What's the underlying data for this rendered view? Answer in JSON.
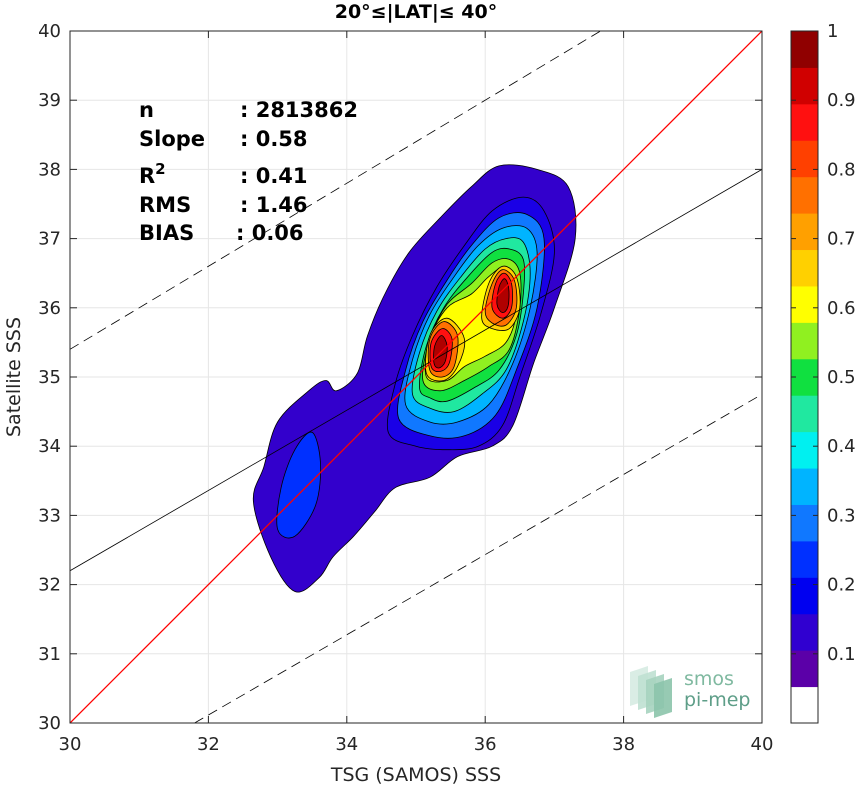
{
  "chart_data": {
    "type": "heatmap",
    "subtype": "filled-contour density scatter",
    "title": "20°≤|LAT|≤ 40°",
    "xlabel": "TSG (SAMOS) SSS",
    "ylabel": "Satellite SSS",
    "xlim": [
      30,
      40
    ],
    "ylim": [
      30,
      40
    ],
    "xticks": [
      30,
      32,
      34,
      36,
      38,
      40
    ],
    "yticks": [
      30,
      31,
      32,
      33,
      34,
      35,
      36,
      37,
      38,
      39,
      40
    ],
    "grid": true,
    "stats": [
      {
        "key": "n",
        "sep": ": ",
        "value": "2813862"
      },
      {
        "key": "Slope",
        "sep": ": ",
        "value": "0.58"
      },
      {
        "key": "R",
        "sup": "2",
        "sep": ": ",
        "value": "0.41"
      },
      {
        "key": "RMS",
        "sep": ": ",
        "value": "1.46"
      },
      {
        "key": "BIAS",
        "sep": ": ",
        "value": "0.06"
      }
    ],
    "lines": {
      "identity": {
        "x": [
          30,
          40
        ],
        "y": [
          30,
          40
        ],
        "color": "#ff0000"
      },
      "regression": {
        "x": [
          30,
          40
        ],
        "y": [
          32.2,
          38.0
        ],
        "color": "#000000"
      },
      "upper_bound": {
        "x": [
          30,
          40
        ],
        "y": [
          35.4,
          41.4
        ],
        "color": "#000000",
        "dash": true
      },
      "lower_bound": {
        "x": [
          31.8,
          40
        ],
        "y": [
          30.0,
          34.75
        ],
        "color": "#000000",
        "dash": true
      }
    },
    "colorbar": {
      "min": 0,
      "max": 1,
      "ticks": [
        "0.1",
        "0.2",
        "0.3",
        "0.4",
        "0.5",
        "0.6",
        "0.7",
        "0.8",
        "0.9",
        "1"
      ],
      "colors": [
        "#ffffff",
        "#5b00a8",
        "#3000d0",
        "#0000f0",
        "#0030ff",
        "#1078ff",
        "#00b4ff",
        "#00f0f0",
        "#20e8a0",
        "#10e040",
        "#90f020",
        "#ffff00",
        "#ffd000",
        "#ffa000",
        "#ff7000",
        "#ff4000",
        "#ff1010",
        "#d00000",
        "#900000"
      ]
    },
    "contours": [
      {
        "level": 0.05,
        "color": "#3300cc",
        "points": [
          [
            32.65,
            33.2
          ],
          [
            32.8,
            33.7
          ],
          [
            33.0,
            34.35
          ],
          [
            33.45,
            34.8
          ],
          [
            33.7,
            34.95
          ],
          [
            33.85,
            34.8
          ],
          [
            34.15,
            35.05
          ],
          [
            34.3,
            35.6
          ],
          [
            34.55,
            36.2
          ],
          [
            34.9,
            36.8
          ],
          [
            35.35,
            37.3
          ],
          [
            35.8,
            37.75
          ],
          [
            36.2,
            38.05
          ],
          [
            36.75,
            38.0
          ],
          [
            37.2,
            37.75
          ],
          [
            37.3,
            37.0
          ],
          [
            37.0,
            36.0
          ],
          [
            36.7,
            35.2
          ],
          [
            36.4,
            34.3
          ],
          [
            36.1,
            34.0
          ],
          [
            35.6,
            33.85
          ],
          [
            35.2,
            33.55
          ],
          [
            34.7,
            33.4
          ],
          [
            34.4,
            33.05
          ],
          [
            34.1,
            32.7
          ],
          [
            33.8,
            32.4
          ],
          [
            33.6,
            32.1
          ],
          [
            33.25,
            31.9
          ],
          [
            32.9,
            32.4
          ]
        ]
      },
      {
        "level": 0.25,
        "color": "#0030ff",
        "points": [
          [
            33.0,
            32.8
          ],
          [
            33.05,
            33.4
          ],
          [
            33.25,
            33.95
          ],
          [
            33.5,
            34.2
          ],
          [
            33.62,
            33.75
          ],
          [
            33.55,
            33.15
          ],
          [
            33.25,
            32.7
          ]
        ]
      },
      {
        "level": 0.15,
        "color": "#1a00e6",
        "points": [
          [
            34.6,
            34.2
          ],
          [
            34.7,
            34.9
          ],
          [
            34.95,
            35.6
          ],
          [
            35.3,
            36.3
          ],
          [
            35.7,
            36.9
          ],
          [
            36.1,
            37.4
          ],
          [
            36.55,
            37.6
          ],
          [
            36.85,
            37.4
          ],
          [
            37.0,
            36.8
          ],
          [
            36.8,
            35.9
          ],
          [
            36.5,
            35.0
          ],
          [
            36.25,
            34.3
          ],
          [
            35.9,
            34.0
          ],
          [
            35.45,
            33.95
          ],
          [
            35.0,
            34.0
          ]
        ]
      },
      {
        "level": 0.3,
        "color": "#1078ff",
        "points": [
          [
            34.75,
            34.4
          ],
          [
            34.85,
            35.1
          ],
          [
            35.1,
            35.8
          ],
          [
            35.45,
            36.4
          ],
          [
            35.8,
            36.9
          ],
          [
            36.2,
            37.3
          ],
          [
            36.6,
            37.35
          ],
          [
            36.85,
            37.0
          ],
          [
            36.75,
            36.0
          ],
          [
            36.45,
            35.1
          ],
          [
            36.15,
            34.45
          ],
          [
            35.7,
            34.15
          ],
          [
            35.2,
            34.15
          ]
        ]
      },
      {
        "level": 0.38,
        "color": "#00b4ff",
        "points": [
          [
            34.85,
            34.6
          ],
          [
            34.95,
            35.25
          ],
          [
            35.2,
            35.9
          ],
          [
            35.55,
            36.45
          ],
          [
            35.9,
            36.9
          ],
          [
            36.25,
            37.15
          ],
          [
            36.6,
            37.15
          ],
          [
            36.75,
            36.8
          ],
          [
            36.65,
            36.0
          ],
          [
            36.4,
            35.2
          ],
          [
            36.05,
            34.6
          ],
          [
            35.6,
            34.35
          ],
          [
            35.2,
            34.35
          ]
        ]
      },
      {
        "level": 0.45,
        "color": "#20e8a0",
        "points": [
          [
            34.95,
            34.75
          ],
          [
            35.05,
            35.35
          ],
          [
            35.3,
            35.95
          ],
          [
            35.65,
            36.45
          ],
          [
            36.0,
            36.85
          ],
          [
            36.3,
            37.0
          ],
          [
            36.55,
            36.95
          ],
          [
            36.65,
            36.5
          ],
          [
            36.55,
            35.8
          ],
          [
            36.3,
            35.1
          ],
          [
            35.95,
            34.75
          ],
          [
            35.55,
            34.5
          ],
          [
            35.2,
            34.55
          ]
        ]
      },
      {
        "level": 0.5,
        "color": "#10e040",
        "points": [
          [
            35.05,
            34.85
          ],
          [
            35.15,
            35.45
          ],
          [
            35.4,
            36.0
          ],
          [
            35.75,
            36.45
          ],
          [
            36.1,
            36.8
          ],
          [
            36.35,
            36.85
          ],
          [
            36.55,
            36.7
          ],
          [
            36.55,
            36.2
          ],
          [
            36.45,
            35.6
          ],
          [
            36.2,
            35.1
          ],
          [
            35.85,
            34.85
          ],
          [
            35.45,
            34.65
          ],
          [
            35.2,
            34.7
          ]
        ]
      },
      {
        "level": 0.58,
        "color": "#90f020",
        "points": [
          [
            35.1,
            34.95
          ],
          [
            35.2,
            35.55
          ],
          [
            35.45,
            36.05
          ],
          [
            35.8,
            36.35
          ],
          [
            36.1,
            36.65
          ],
          [
            36.35,
            36.7
          ],
          [
            36.5,
            36.5
          ],
          [
            36.5,
            36.0
          ],
          [
            36.35,
            35.4
          ],
          [
            36.05,
            35.15
          ],
          [
            35.7,
            34.95
          ],
          [
            35.35,
            34.8
          ]
        ]
      },
      {
        "level": 0.65,
        "color": "#ffff00",
        "points": [
          [
            35.15,
            35.0
          ],
          [
            35.2,
            35.55
          ],
          [
            35.45,
            36.0
          ],
          [
            35.8,
            36.2
          ],
          [
            36.05,
            36.45
          ],
          [
            36.3,
            36.6
          ],
          [
            36.45,
            36.35
          ],
          [
            36.45,
            35.9
          ],
          [
            36.3,
            35.5
          ],
          [
            36.0,
            35.3
          ],
          [
            35.7,
            35.15
          ],
          [
            35.45,
            34.95
          ]
        ]
      },
      {
        "level": 0.7,
        "color": "#ffd000",
        "points": [
          [
            35.15,
            35.05
          ],
          [
            35.2,
            35.6
          ],
          [
            35.45,
            35.85
          ],
          [
            35.7,
            35.55
          ],
          [
            35.6,
            35.15
          ],
          [
            35.4,
            34.95
          ]
        ]
      },
      {
        "level": 0.7,
        "color": "#ffd000",
        "points": [
          [
            35.95,
            35.85
          ],
          [
            36.05,
            36.35
          ],
          [
            36.25,
            36.6
          ],
          [
            36.45,
            36.45
          ],
          [
            36.5,
            36.0
          ],
          [
            36.35,
            35.7
          ],
          [
            36.1,
            35.7
          ]
        ]
      },
      {
        "level": 0.8,
        "color": "#ff7000",
        "points": [
          [
            35.2,
            35.1
          ],
          [
            35.2,
            35.55
          ],
          [
            35.4,
            35.8
          ],
          [
            35.6,
            35.6
          ],
          [
            35.55,
            35.15
          ],
          [
            35.38,
            35.0
          ]
        ]
      },
      {
        "level": 0.8,
        "color": "#ff7000",
        "points": [
          [
            36.0,
            35.95
          ],
          [
            36.1,
            36.35
          ],
          [
            36.25,
            36.55
          ],
          [
            36.42,
            36.4
          ],
          [
            36.45,
            36.0
          ],
          [
            36.3,
            35.75
          ],
          [
            36.1,
            35.78
          ]
        ]
      },
      {
        "level": 0.9,
        "color": "#ff1010",
        "points": [
          [
            35.22,
            35.15
          ],
          [
            35.22,
            35.5
          ],
          [
            35.38,
            35.7
          ],
          [
            35.52,
            35.55
          ],
          [
            35.48,
            35.2
          ],
          [
            35.35,
            35.08
          ]
        ]
      },
      {
        "level": 0.9,
        "color": "#ff1010",
        "points": [
          [
            36.1,
            36.0
          ],
          [
            36.15,
            36.35
          ],
          [
            36.27,
            36.5
          ],
          [
            36.38,
            36.35
          ],
          [
            36.38,
            36.0
          ],
          [
            36.25,
            35.85
          ]
        ]
      },
      {
        "level": 0.98,
        "color": "#b00000",
        "points": [
          [
            35.26,
            35.2
          ],
          [
            35.27,
            35.45
          ],
          [
            35.37,
            35.6
          ],
          [
            35.45,
            35.45
          ],
          [
            35.42,
            35.22
          ],
          [
            35.33,
            35.13
          ]
        ]
      },
      {
        "level": 0.98,
        "color": "#b00000",
        "points": [
          [
            36.17,
            36.05
          ],
          [
            36.2,
            36.3
          ],
          [
            36.28,
            36.42
          ],
          [
            36.34,
            36.28
          ],
          [
            36.33,
            36.02
          ],
          [
            36.25,
            35.93
          ]
        ]
      }
    ],
    "logo": {
      "line1": "smos",
      "line2": "pi-mep"
    }
  }
}
